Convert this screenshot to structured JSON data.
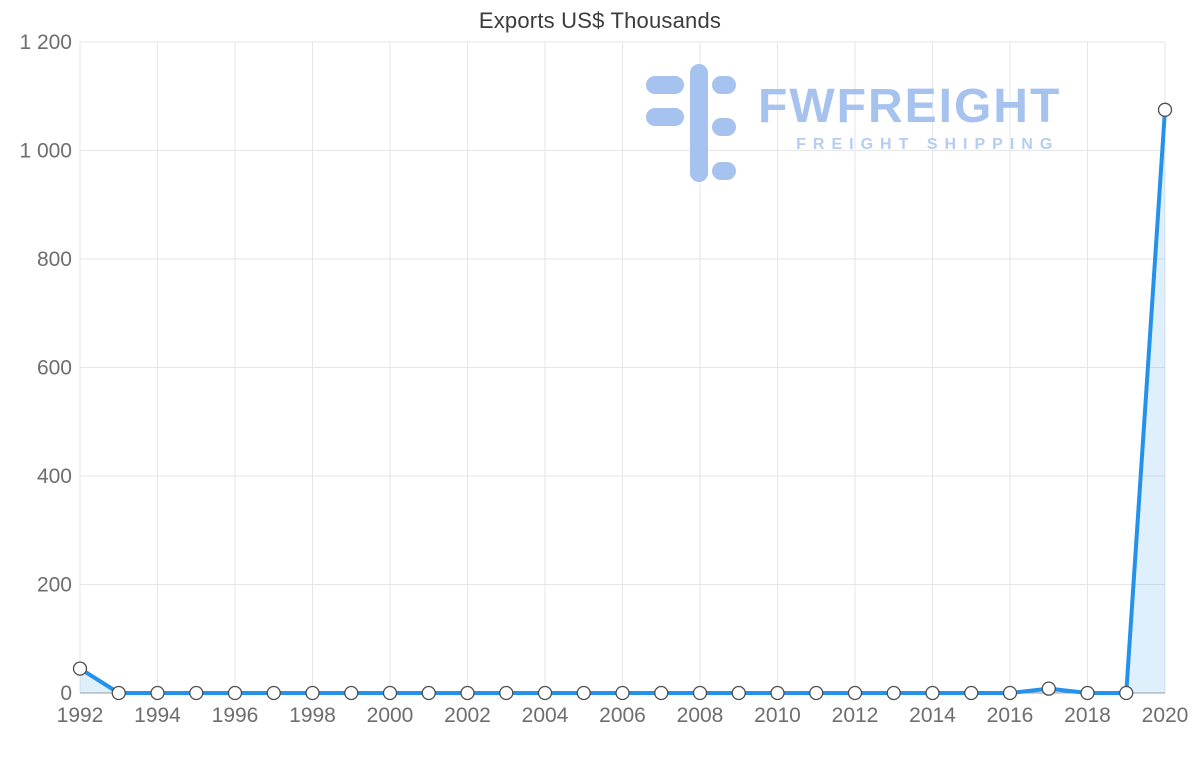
{
  "chart_data": {
    "type": "line",
    "title": "Exports US$ Thousands",
    "xlabel": "",
    "ylabel": "",
    "x": [
      1992,
      1993,
      1994,
      1995,
      1996,
      1997,
      1998,
      1999,
      2000,
      2001,
      2002,
      2003,
      2004,
      2005,
      2006,
      2007,
      2008,
      2009,
      2010,
      2011,
      2012,
      2013,
      2014,
      2015,
      2016,
      2017,
      2018,
      2019,
      2020
    ],
    "values": [
      45,
      0,
      0,
      0,
      0,
      0,
      0,
      0,
      0,
      0,
      0,
      0,
      0,
      0,
      0,
      0,
      0,
      0,
      0,
      0,
      0,
      0,
      0,
      0,
      0,
      8,
      0,
      0,
      1075
    ],
    "ylim": [
      0,
      1200
    ],
    "yticks": [
      0,
      200,
      400,
      600,
      800,
      1000,
      1200
    ],
    "ytick_labels": [
      "0",
      "200",
      "400",
      "600",
      "800",
      "1 000",
      "1 200"
    ],
    "xtick_years": [
      1992,
      1994,
      1996,
      1998,
      2000,
      2002,
      2004,
      2006,
      2008,
      2010,
      2012,
      2014,
      2016,
      2018,
      2020
    ],
    "grid": true,
    "legend_position": "none",
    "line_color": "#2491eb",
    "area_fill_color": "rgba(36,145,235,0.14)",
    "marker_fill": "#ffffff",
    "marker_stroke": "#4d4d4d",
    "grid_color": "#e6e6e6",
    "baseline_color": "#9e9e9e",
    "axis_text_color": "#6e6e6e"
  },
  "watermark": {
    "brand": "FWFREIGHT",
    "tagline": "FREIGHT SHIPPING",
    "color": "#a6c2ee"
  }
}
